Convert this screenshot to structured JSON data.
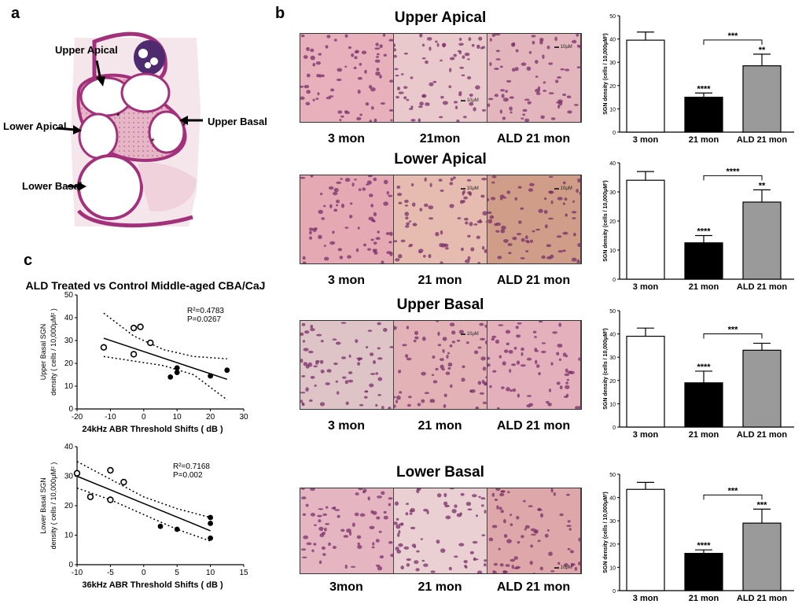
{
  "panels": {
    "a": "a",
    "b": "b",
    "c": "c"
  },
  "anatomy": {
    "labels": {
      "upper_apical": "Upper Apical",
      "lower_apical": "Lower Apical",
      "upper_basal": "Upper Basal",
      "lower_basal": "Lower Basal"
    }
  },
  "histology_rows": [
    {
      "title": "Upper Apical",
      "labels": [
        "3 mon",
        "21mon",
        "ALD 21 mon"
      ]
    },
    {
      "title": "Lower Apical",
      "labels": [
        "3 mon",
        "21 mon",
        "ALD 21 mon"
      ]
    },
    {
      "title": "Upper Basal",
      "labels": [
        "3 mon",
        "21 mon",
        "ALD 21 mon"
      ]
    },
    {
      "title": "Lower Basal",
      "labels": [
        "3mon",
        "21 mon",
        "ALD 21 mon"
      ]
    }
  ],
  "scale_bar_text": "10μM",
  "colors": {
    "tissue_pink": "#d89aa6",
    "nuclei": "#7a2f6a",
    "control_bar": "#ffffff",
    "old_bar": "#000000",
    "ald_bar": "#9a9a9a"
  },
  "scatter_title": "ALD Treated vs Control Middle-aged CBA/CaJ",
  "chart_data": [
    {
      "type": "bar",
      "categories": [
        "3 mon",
        "21 mon",
        "ALD 21 mon"
      ],
      "values": [
        39.5,
        15,
        28.5
      ],
      "errors": [
        3.5,
        1.8,
        5
      ],
      "ylim": [
        0,
        50
      ],
      "yticks": [
        0,
        10,
        20,
        30,
        40,
        50
      ],
      "ylabel": "SGN density (cells / 10,000μM²)",
      "stars": [
        "",
        "****",
        "**"
      ],
      "bracket": "***"
    },
    {
      "type": "bar",
      "categories": [
        "3 mon",
        "21 mon",
        "ALD 21 mon"
      ],
      "values": [
        34,
        12.5,
        26.5
      ],
      "errors": [
        3,
        2.5,
        4.2
      ],
      "ylim": [
        0,
        40
      ],
      "yticks": [
        0,
        10,
        20,
        30,
        40
      ],
      "ylabel": "SGN density (cells / 10,000μM²)",
      "stars": [
        "",
        "****",
        "**"
      ],
      "bracket": "****"
    },
    {
      "type": "bar",
      "categories": [
        "3 mon",
        "21 mon",
        "ALD 21 mon"
      ],
      "values": [
        39,
        19,
        33
      ],
      "errors": [
        3.5,
        5,
        3
      ],
      "ylim": [
        0,
        50
      ],
      "yticks": [
        0,
        10,
        20,
        30,
        40,
        50
      ],
      "ylabel": "SGN density (cells / 10,000μM²)",
      "stars": [
        "",
        "****",
        ""
      ],
      "bracket": "***"
    },
    {
      "type": "bar",
      "categories": [
        "3 mon",
        "21 mon",
        "ALD 21 mon"
      ],
      "values": [
        43.5,
        16,
        29
      ],
      "errors": [
        3,
        1.5,
        6
      ],
      "ylim": [
        0,
        50
      ],
      "yticks": [
        0,
        10,
        20,
        30,
        40,
        50
      ],
      "ylabel": "SGN density (cells / 10,000μM²)",
      "stars": [
        "",
        "****",
        "***"
      ],
      "bracket": "***"
    },
    {
      "type": "scatter",
      "xlabel": "24kHz ABR Threshold Shifts ( dB )",
      "ylabel": [
        "Upper Basal SGN",
        "density ( cells / 10,000μM² )"
      ],
      "xlim": [
        -20,
        30
      ],
      "ylim": [
        0,
        50
      ],
      "xticks": [
        -20,
        -10,
        0,
        10,
        20,
        30
      ],
      "yticks": [
        0,
        10,
        20,
        30,
        40,
        50
      ],
      "r2_text": "R²=0.4783",
      "p_text": "P=0.0267",
      "open_points": [
        [
          -12,
          27
        ],
        [
          -3,
          35.5
        ],
        [
          -1,
          36
        ],
        [
          2,
          29
        ],
        [
          -3,
          24
        ]
      ],
      "filled_points": [
        [
          8,
          14
        ],
        [
          10,
          16
        ],
        [
          10,
          18
        ],
        [
          20,
          14.5
        ],
        [
          25,
          17
        ]
      ],
      "fit": {
        "x": [
          -12,
          25
        ],
        "y": [
          31,
          13
        ]
      },
      "ci_upper": {
        "x": [
          -12,
          -3,
          6,
          15,
          25
        ],
        "y": [
          42,
          32,
          26,
          23,
          22
        ]
      },
      "ci_lower": {
        "x": [
          -12,
          -3,
          6,
          15,
          25
        ],
        "y": [
          23,
          21,
          19,
          15,
          4
        ]
      }
    },
    {
      "type": "scatter",
      "xlabel": "36kHz ABR Threshold Shifts ( dB )",
      "ylabel": [
        "Lower Basal SGN",
        "density ( cells / 10,000μM² )"
      ],
      "xlim": [
        -10,
        15
      ],
      "ylim": [
        0,
        40
      ],
      "xticks": [
        -10,
        -5,
        0,
        5,
        10,
        15
      ],
      "yticks": [
        0,
        10,
        20,
        30,
        40
      ],
      "r2_text": "R²=0.7168",
      "p_text": "P=0.002",
      "open_points": [
        [
          -10,
          31
        ],
        [
          -5,
          32
        ],
        [
          -3,
          28
        ],
        [
          -8,
          23
        ],
        [
          -5,
          22
        ]
      ],
      "filled_points": [
        [
          2.5,
          13
        ],
        [
          5,
          12
        ],
        [
          10,
          16
        ],
        [
          10,
          14
        ],
        [
          10,
          9
        ]
      ],
      "fit": {
        "x": [
          -10,
          10
        ],
        "y": [
          30,
          11.5
        ]
      },
      "ci_upper": {
        "x": [
          -10,
          -5,
          0,
          5,
          10
        ],
        "y": [
          35,
          29,
          23,
          19,
          16
        ]
      },
      "ci_lower": {
        "x": [
          -10,
          -5,
          0,
          5,
          10
        ],
        "y": [
          26,
          22,
          17,
          12,
          8
        ]
      }
    }
  ]
}
